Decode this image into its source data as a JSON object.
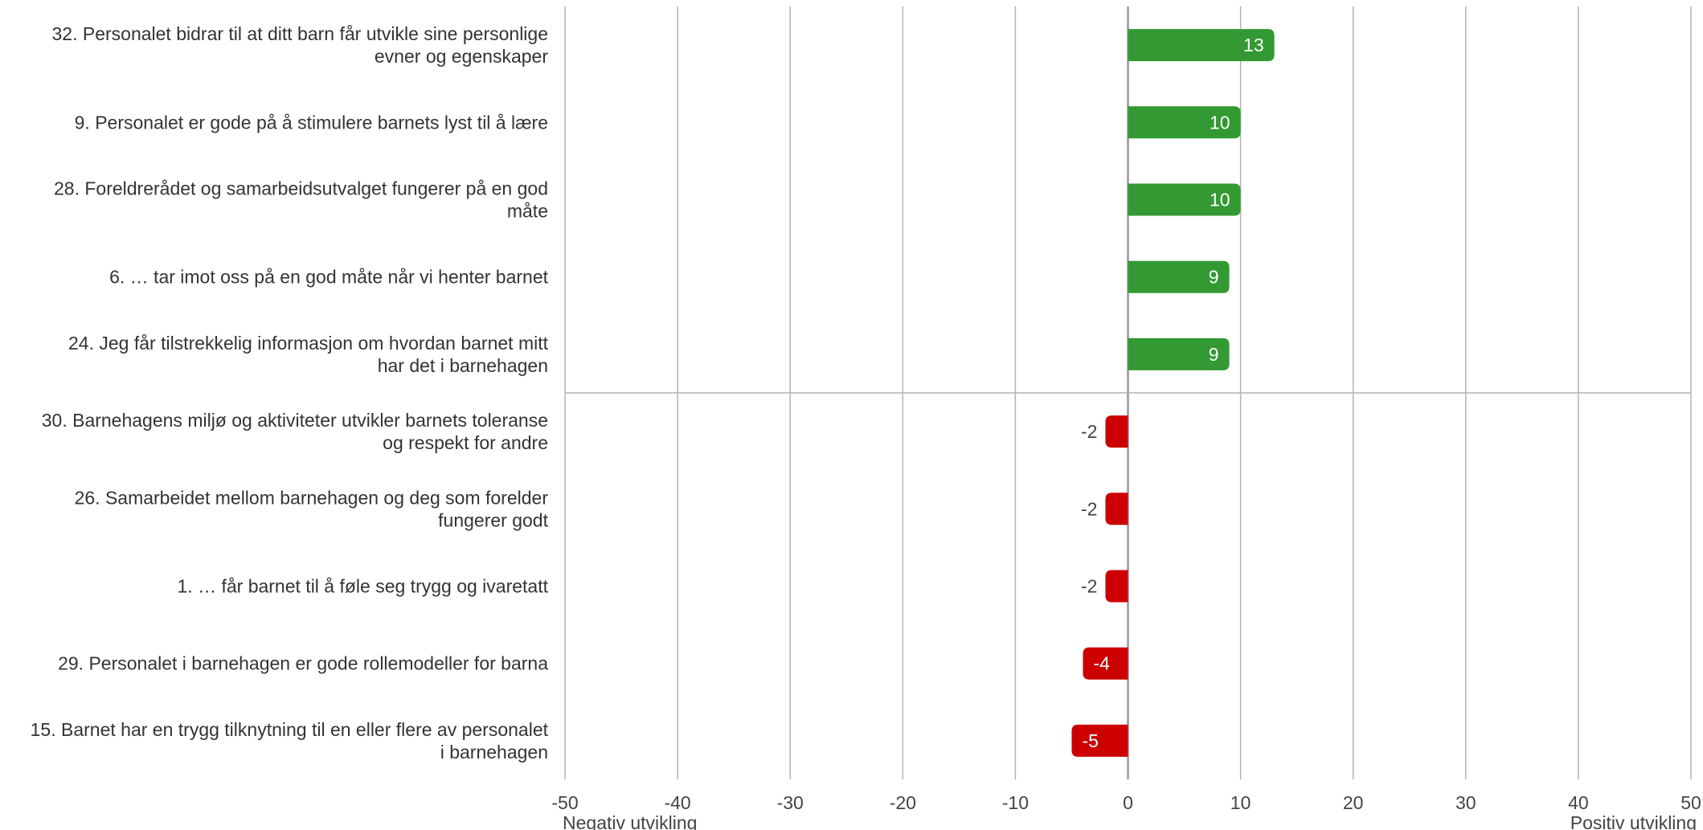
{
  "chart_data": {
    "type": "bar",
    "orientation": "horizontal",
    "title": "",
    "xlabel": "",
    "ylabel": "",
    "xlim": [
      -50,
      50
    ],
    "xticks": [
      -50,
      -40,
      -30,
      -20,
      -10,
      0,
      10,
      20,
      30,
      40,
      50
    ],
    "x_tick_labels": [
      "-50",
      "-40",
      "-30",
      "-20",
      "-10",
      "0",
      "10",
      "20",
      "30",
      "40",
      "50"
    ],
    "x_axis_end_labels": {
      "left": "Negativ utvikling",
      "right": "Positiv utvikling"
    },
    "grid": true,
    "legend": "none",
    "categories": [
      [
        "32. Personalet bidrar til at ditt barn får utvikle sine personlige",
        "evner og egenskaper"
      ],
      [
        "9. Personalet er gode på å stimulere barnets lyst til å lære"
      ],
      [
        "28. Foreldrerådet og samarbeidsutvalget fungerer på en god",
        "måte"
      ],
      [
        "6. … tar imot oss på en god måte når vi henter barnet"
      ],
      [
        "24. Jeg får tilstrekkelig informasjon om hvordan barnet mitt",
        "har det i barnehagen"
      ],
      [
        "30. Barnehagens miljø og aktiviteter utvikler barnets toleranse",
        "og respekt for andre"
      ],
      [
        "26. Samarbeidet mellom barnehagen og deg som forelder",
        "fungerer godt"
      ],
      [
        "1. … får barnet til å føle seg trygg og ivaretatt"
      ],
      [
        "29. Personalet i barnehagen er gode rollemodeller for barna"
      ],
      [
        "15. Barnet har en trygg tilknytning til en eller flere av personalet",
        "i barnehagen"
      ]
    ],
    "values": [
      13,
      10,
      10,
      9,
      9,
      -2,
      -2,
      -2,
      -4,
      -5
    ],
    "value_labels": [
      "13",
      "10",
      "10",
      "9",
      "9",
      "-2",
      "-2",
      "-2",
      "-4",
      "-5"
    ],
    "colors": {
      "positive": "#339933",
      "negative": "#cc0000",
      "grid": "#b3b3b3",
      "divider": "#b3b3b3",
      "zero_line": "#999999"
    }
  }
}
